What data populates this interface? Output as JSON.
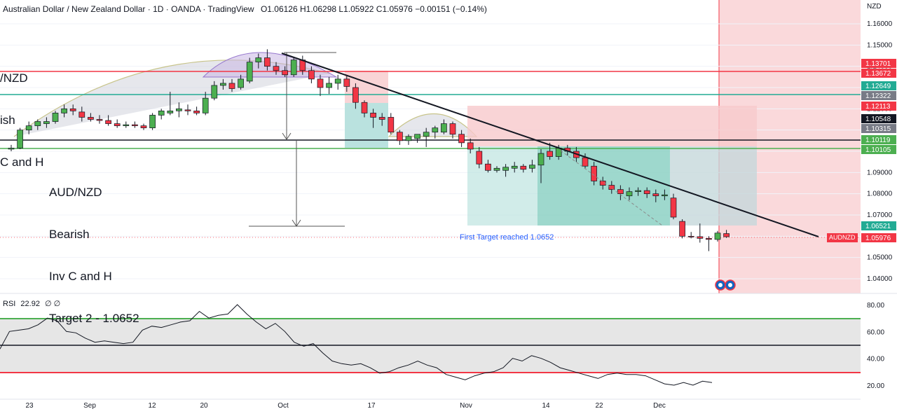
{
  "header": {
    "title": "Australian Dollar / New Zealand Dollar · 1D · OANDA · TradingView",
    "open": "O1.06126",
    "high": "H1.06298",
    "low": "L1.05922",
    "close": "C1.05976",
    "change": "−0.00151 (−0.14%)"
  },
  "currency_label": "NZD",
  "annotations": {
    "top_left": [
      "/NZD",
      "ish",
      "C and H"
    ],
    "main": [
      "AUD/NZD",
      "Bearish",
      "Inv C and H",
      "Target 2 - 1.0652"
    ],
    "first_target": "First Target reached 1.0652"
  },
  "symbol_badge": "AUDNZD",
  "price_tags": [
    {
      "label": "1.13701",
      "value": 1.13701,
      "color": "#f23645"
    },
    {
      "label": "1.13672",
      "value": 1.13672,
      "color": "#f23645"
    },
    {
      "label": "1.12649",
      "value": 1.12649,
      "color": "#22ab94"
    },
    {
      "label": "1.12322",
      "value": 1.12322,
      "color": "#787b86"
    },
    {
      "label": "1.12113",
      "value": 1.12113,
      "color": "#f23645"
    },
    {
      "label": "1.10548",
      "value": 1.10548,
      "color": "#131722"
    },
    {
      "label": "1.10315",
      "value": 1.10315,
      "color": "#787b86"
    },
    {
      "label": "1.10119",
      "value": 1.10119,
      "color": "#4caf50"
    },
    {
      "label": "1.10105",
      "value": 1.10105,
      "color": "#4caf50"
    },
    {
      "label": "1.06521",
      "value": 1.06521,
      "color": "#22ab94"
    },
    {
      "label": "1.05976",
      "value": 1.05976,
      "color": "#f23645"
    }
  ],
  "rsi": {
    "label": "RSI",
    "value": "22.92",
    "extra": "∅ ∅",
    "upper": 70,
    "lower": 30,
    "mid": 50
  },
  "chart_data": {
    "type": "candlestick",
    "title": "Australian Dollar / New Zealand Dollar · 1D · OANDA",
    "yticks": [
      1.04,
      1.05,
      1.06,
      1.07,
      1.08,
      1.09,
      1.1,
      1.11,
      1.12,
      1.13,
      1.14,
      1.15,
      1.16
    ],
    "ytick_labels": [
      "1.04000",
      "1.05000",
      "1.06000",
      "1.07000",
      "1.08000",
      "1.09000",
      "1.10000",
      "1.11000",
      "1.12000",
      "1.13000",
      "1.14000",
      "1.15000",
      "1.16000"
    ],
    "ylim": [
      1.0335,
      1.1655
    ],
    "xtick_labels": [
      "23",
      "Sep",
      "12",
      "20",
      "Oct",
      "17",
      "Nov",
      "14",
      "22",
      "Dec"
    ],
    "candles": [
      {
        "o": 1.101,
        "h": 1.103,
        "l": 1.1,
        "c": 1.1015
      },
      {
        "o": 1.1015,
        "h": 1.111,
        "l": 1.101,
        "c": 1.11
      },
      {
        "o": 1.11,
        "h": 1.114,
        "l": 1.108,
        "c": 1.112
      },
      {
        "o": 1.112,
        "h": 1.115,
        "l": 1.11,
        "c": 1.114
      },
      {
        "o": 1.113,
        "h": 1.116,
        "l": 1.111,
        "c": 1.114
      },
      {
        "o": 1.114,
        "h": 1.119,
        "l": 1.113,
        "c": 1.118
      },
      {
        "o": 1.118,
        "h": 1.122,
        "l": 1.116,
        "c": 1.12
      },
      {
        "o": 1.12,
        "h": 1.122,
        "l": 1.117,
        "c": 1.119
      },
      {
        "o": 1.1185,
        "h": 1.121,
        "l": 1.114,
        "c": 1.116
      },
      {
        "o": 1.116,
        "h": 1.118,
        "l": 1.114,
        "c": 1.115
      },
      {
        "o": 1.115,
        "h": 1.117,
        "l": 1.113,
        "c": 1.1145
      },
      {
        "o": 1.1145,
        "h": 1.117,
        "l": 1.112,
        "c": 1.113
      },
      {
        "o": 1.113,
        "h": 1.115,
        "l": 1.111,
        "c": 1.112
      },
      {
        "o": 1.112,
        "h": 1.114,
        "l": 1.111,
        "c": 1.1125
      },
      {
        "o": 1.1125,
        "h": 1.114,
        "l": 1.111,
        "c": 1.112
      },
      {
        "o": 1.112,
        "h": 1.113,
        "l": 1.11,
        "c": 1.111
      },
      {
        "o": 1.111,
        "h": 1.118,
        "l": 1.11,
        "c": 1.117
      },
      {
        "o": 1.117,
        "h": 1.12,
        "l": 1.115,
        "c": 1.119
      },
      {
        "o": 1.118,
        "h": 1.128,
        "l": 1.117,
        "c": 1.119
      },
      {
        "o": 1.119,
        "h": 1.123,
        "l": 1.116,
        "c": 1.12
      },
      {
        "o": 1.1195,
        "h": 1.122,
        "l": 1.117,
        "c": 1.119
      },
      {
        "o": 1.119,
        "h": 1.121,
        "l": 1.117,
        "c": 1.118
      },
      {
        "o": 1.118,
        "h": 1.128,
        "l": 1.117,
        "c": 1.125
      },
      {
        "o": 1.125,
        "h": 1.133,
        "l": 1.124,
        "c": 1.131
      },
      {
        "o": 1.131,
        "h": 1.134,
        "l": 1.129,
        "c": 1.132
      },
      {
        "o": 1.132,
        "h": 1.134,
        "l": 1.128,
        "c": 1.1295
      },
      {
        "o": 1.13,
        "h": 1.136,
        "l": 1.129,
        "c": 1.134
      },
      {
        "o": 1.133,
        "h": 1.144,
        "l": 1.132,
        "c": 1.142
      },
      {
        "o": 1.142,
        "h": 1.146,
        "l": 1.139,
        "c": 1.144
      },
      {
        "o": 1.144,
        "h": 1.148,
        "l": 1.138,
        "c": 1.14
      },
      {
        "o": 1.14,
        "h": 1.142,
        "l": 1.136,
        "c": 1.138
      },
      {
        "o": 1.138,
        "h": 1.14,
        "l": 1.135,
        "c": 1.136
      },
      {
        "o": 1.136,
        "h": 1.144,
        "l": 1.135,
        "c": 1.143
      },
      {
        "o": 1.143,
        "h": 1.145,
        "l": 1.136,
        "c": 1.138
      },
      {
        "o": 1.138,
        "h": 1.14,
        "l": 1.132,
        "c": 1.134
      },
      {
        "o": 1.134,
        "h": 1.136,
        "l": 1.126,
        "c": 1.13
      },
      {
        "o": 1.13,
        "h": 1.135,
        "l": 1.127,
        "c": 1.132
      },
      {
        "o": 1.132,
        "h": 1.136,
        "l": 1.129,
        "c": 1.134
      },
      {
        "o": 1.134,
        "h": 1.136,
        "l": 1.128,
        "c": 1.1305
      },
      {
        "o": 1.13,
        "h": 1.132,
        "l": 1.12,
        "c": 1.123
      },
      {
        "o": 1.123,
        "h": 1.124,
        "l": 1.116,
        "c": 1.118
      },
      {
        "o": 1.118,
        "h": 1.12,
        "l": 1.111,
        "c": 1.116
      },
      {
        "o": 1.116,
        "h": 1.118,
        "l": 1.112,
        "c": 1.115
      },
      {
        "o": 1.116,
        "h": 1.118,
        "l": 1.108,
        "c": 1.109
      },
      {
        "o": 1.109,
        "h": 1.11,
        "l": 1.103,
        "c": 1.105
      },
      {
        "o": 1.105,
        "h": 1.108,
        "l": 1.103,
        "c": 1.107
      },
      {
        "o": 1.106,
        "h": 1.108,
        "l": 1.104,
        "c": 1.108
      },
      {
        "o": 1.107,
        "h": 1.111,
        "l": 1.102,
        "c": 1.109
      },
      {
        "o": 1.109,
        "h": 1.112,
        "l": 1.106,
        "c": 1.111
      },
      {
        "o": 1.109,
        "h": 1.115,
        "l": 1.108,
        "c": 1.113
      },
      {
        "o": 1.113,
        "h": 1.114,
        "l": 1.106,
        "c": 1.108
      },
      {
        "o": 1.108,
        "h": 1.11,
        "l": 1.102,
        "c": 1.104
      },
      {
        "o": 1.104,
        "h": 1.106,
        "l": 1.099,
        "c": 1.101
      },
      {
        "o": 1.1,
        "h": 1.102,
        "l": 1.092,
        "c": 1.094
      },
      {
        "o": 1.094,
        "h": 1.096,
        "l": 1.09,
        "c": 1.091
      },
      {
        "o": 1.091,
        "h": 1.093,
        "l": 1.09,
        "c": 1.092
      },
      {
        "o": 1.091,
        "h": 1.094,
        "l": 1.088,
        "c": 1.0925
      },
      {
        "o": 1.092,
        "h": 1.095,
        "l": 1.09,
        "c": 1.093
      },
      {
        "o": 1.093,
        "h": 1.094,
        "l": 1.09,
        "c": 1.0915
      },
      {
        "o": 1.092,
        "h": 1.096,
        "l": 1.09,
        "c": 1.0935
      },
      {
        "o": 1.0935,
        "h": 1.101,
        "l": 1.085,
        "c": 1.099
      },
      {
        "o": 1.1,
        "h": 1.104,
        "l": 1.096,
        "c": 1.0975
      },
      {
        "o": 1.0975,
        "h": 1.103,
        "l": 1.096,
        "c": 1.1015
      },
      {
        "o": 1.1015,
        "h": 1.103,
        "l": 1.098,
        "c": 1.1
      },
      {
        "o": 1.1,
        "h": 1.102,
        "l": 1.095,
        "c": 1.097
      },
      {
        "o": 1.097,
        "h": 1.099,
        "l": 1.092,
        "c": 1.093
      },
      {
        "o": 1.093,
        "h": 1.095,
        "l": 1.084,
        "c": 1.086
      },
      {
        "o": 1.086,
        "h": 1.088,
        "l": 1.082,
        "c": 1.084
      },
      {
        "o": 1.084,
        "h": 1.086,
        "l": 1.08,
        "c": 1.082
      },
      {
        "o": 1.082,
        "h": 1.084,
        "l": 1.077,
        "c": 1.08
      },
      {
        "o": 1.079,
        "h": 1.083,
        "l": 1.077,
        "c": 1.081
      },
      {
        "o": 1.081,
        "h": 1.083,
        "l": 1.079,
        "c": 1.0815
      },
      {
        "o": 1.0815,
        "h": 1.083,
        "l": 1.078,
        "c": 1.08
      },
      {
        "o": 1.08,
        "h": 1.082,
        "l": 1.076,
        "c": 1.079
      },
      {
        "o": 1.079,
        "h": 1.082,
        "l": 1.077,
        "c": 1.0795
      },
      {
        "o": 1.078,
        "h": 1.08,
        "l": 1.068,
        "c": 1.069
      },
      {
        "o": 1.067,
        "h": 1.068,
        "l": 1.059,
        "c": 1.06
      },
      {
        "o": 1.06,
        "h": 1.062,
        "l": 1.059,
        "c": 1.0598
      },
      {
        "o": 1.0598,
        "h": 1.066,
        "l": 1.057,
        "c": 1.059
      },
      {
        "o": 1.059,
        "h": 1.06,
        "l": 1.053,
        "c": 1.0585
      },
      {
        "o": 1.0585,
        "h": 1.0625,
        "l": 1.0575,
        "c": 1.0615
      },
      {
        "o": 1.06126,
        "h": 1.06298,
        "l": 1.05922,
        "c": 1.05976
      }
    ],
    "rsi_values": [
      47,
      60,
      61,
      62,
      65,
      70,
      68,
      60,
      59,
      55,
      52,
      53,
      52,
      51,
      52,
      61,
      64,
      63,
      65,
      67,
      68,
      75,
      70,
      72,
      73,
      80,
      73,
      67,
      62,
      66,
      60,
      52,
      49,
      51,
      44,
      38,
      36,
      35,
      36,
      33,
      29,
      30,
      33,
      35,
      38,
      35,
      33,
      28,
      26,
      24,
      27,
      29,
      30,
      33,
      40,
      38,
      42,
      40,
      37,
      33,
      31,
      29,
      27,
      25,
      28,
      29,
      28,
      28,
      27,
      24,
      21,
      20,
      22,
      20,
      23,
      22
    ]
  }
}
